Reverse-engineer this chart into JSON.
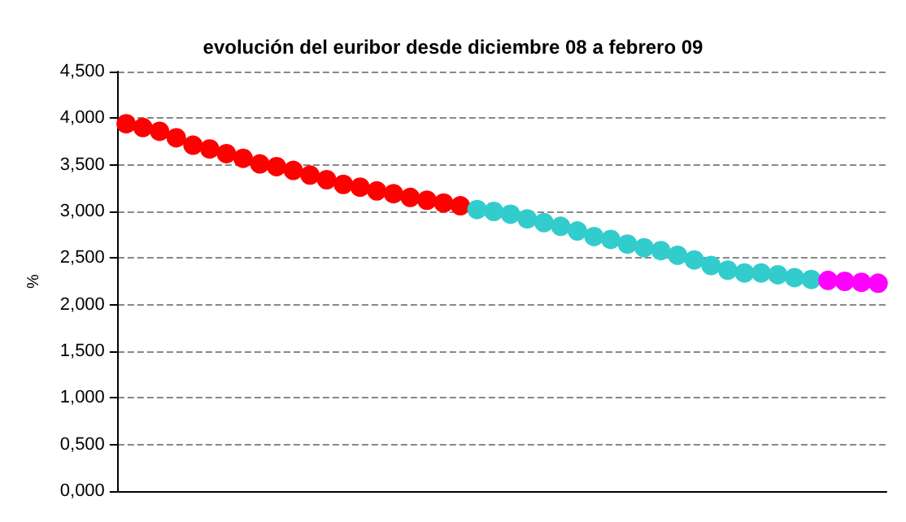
{
  "chart_data": {
    "type": "scatter",
    "title": "evolución del euribor desde diciembre 08 a febrero 09",
    "ylabel": "%",
    "categories": [
      null,
      null,
      null,
      null,
      null,
      null,
      null,
      null,
      null,
      null,
      null,
      null,
      null,
      null,
      null,
      null,
      null,
      null,
      null,
      null,
      null,
      null,
      null,
      null,
      null,
      null,
      null,
      null,
      null,
      null,
      null,
      null,
      null,
      null,
      null,
      null,
      null,
      null,
      null,
      null,
      null,
      null,
      null,
      null,
      null,
      null
    ],
    "series": [
      {
        "color": "#ff0000",
        "values": [
          3.94,
          3.9,
          3.86,
          3.79,
          3.71,
          3.67,
          3.62,
          3.57,
          3.51,
          3.48,
          3.44,
          3.39,
          3.34,
          3.29,
          3.26,
          3.22,
          3.19,
          3.15,
          3.12,
          3.09,
          3.06,
          null,
          null,
          null,
          null,
          null,
          null,
          null,
          null,
          null,
          null,
          null,
          null,
          null,
          null,
          null,
          null,
          null,
          null,
          null,
          null,
          null,
          null,
          null,
          null,
          null
        ]
      },
      {
        "color": "#33cccc",
        "values": [
          null,
          null,
          null,
          null,
          null,
          null,
          null,
          null,
          null,
          null,
          null,
          null,
          null,
          null,
          null,
          null,
          null,
          null,
          null,
          null,
          null,
          3.02,
          3.0,
          2.97,
          2.92,
          2.88,
          2.84,
          2.79,
          2.73,
          2.7,
          2.65,
          2.61,
          2.58,
          2.53,
          2.48,
          2.42,
          2.37,
          2.34,
          2.34,
          2.32,
          2.29,
          2.27,
          null,
          null,
          null,
          null
        ]
      },
      {
        "color": "#ff00ff",
        "values": [
          null,
          null,
          null,
          null,
          null,
          null,
          null,
          null,
          null,
          null,
          null,
          null,
          null,
          null,
          null,
          null,
          null,
          null,
          null,
          null,
          null,
          null,
          null,
          null,
          null,
          null,
          null,
          null,
          null,
          null,
          null,
          null,
          null,
          null,
          null,
          null,
          null,
          null,
          null,
          null,
          null,
          null,
          2.26,
          2.25,
          2.24,
          2.23
        ]
      }
    ],
    "ylim": [
      0,
      4.5
    ],
    "yticks": [
      {
        "value": 0,
        "label": "0,000"
      },
      {
        "value": 0.5,
        "label": "0,500"
      },
      {
        "value": 1,
        "label": "1,000"
      },
      {
        "value": 1.5,
        "label": "1,500"
      },
      {
        "value": 2,
        "label": "2,000"
      },
      {
        "value": 2.5,
        "label": "2,500"
      },
      {
        "value": 3,
        "label": "3,000"
      },
      {
        "value": 3.5,
        "label": "3,500"
      },
      {
        "value": 4,
        "label": "4,000"
      },
      {
        "value": 4.5,
        "label": "4,500"
      }
    ],
    "grid": "y",
    "marker": "circle"
  }
}
